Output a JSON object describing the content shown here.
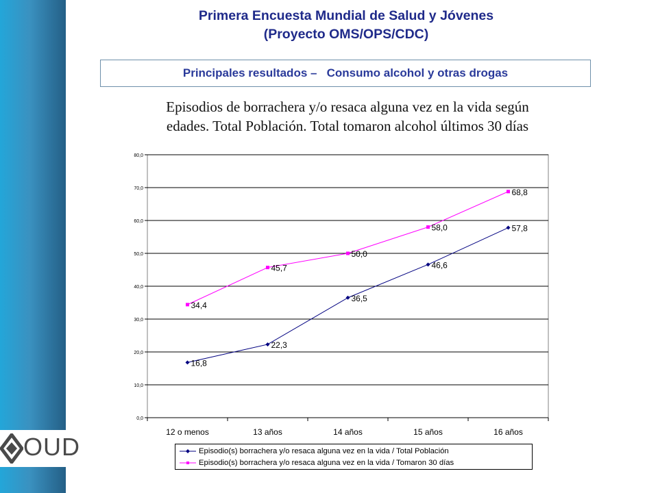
{
  "header": {
    "title_line1": "Primera Encuesta Mundial de Salud y Jóvenes",
    "title_line2": "(Proyecto OMS/OPS/CDC)",
    "section": "Principales resultados –   Consumo alcohol y otras drogas"
  },
  "chart_heading": {
    "line1": "Episodios de borrachera y/o resaca alguna vez en la vida según",
    "line2": "edades. Total Población. Total tomaron alcohol últimos 30 días"
  },
  "logo": {
    "text": "OUD"
  },
  "colors": {
    "title": "#1f2a8a",
    "series1": "#000080",
    "series2": "#ff00ff",
    "sidebar_light": "#23a6d9",
    "sidebar_dark": "#245f86"
  },
  "chart_data": {
    "type": "line",
    "categories": [
      "12 o menos",
      "13 años",
      "14 años",
      "15 años",
      "16 años"
    ],
    "series": [
      {
        "name": "Episodio(s) borrachera y/o resaca alguna vez en la vida / Total Población",
        "values": [
          16.8,
          22.3,
          36.5,
          46.6,
          57.8
        ],
        "labels": [
          "16,8",
          "22,3",
          "36,5",
          "46,6",
          "57,8"
        ],
        "color": "#000080",
        "marker": "diamond"
      },
      {
        "name": "Episodio(s) borrachera y/o resaca alguna vez en la vida / Tomaron 30 días",
        "values": [
          34.4,
          45.7,
          50.0,
          58.0,
          68.8
        ],
        "labels": [
          "34,4",
          "45,7",
          "50,0",
          "58,0",
          "68,8"
        ],
        "color": "#ff00ff",
        "marker": "square"
      }
    ],
    "ylim": [
      0,
      80
    ],
    "yticks": [
      0,
      10,
      20,
      30,
      40,
      50,
      60,
      70,
      80
    ],
    "ytick_labels": [
      "0,0",
      "10,0",
      "20,0",
      "30,0",
      "40,0",
      "50,0",
      "60,0",
      "70,0",
      "80,0"
    ],
    "grid": true,
    "legend_position": "bottom"
  }
}
